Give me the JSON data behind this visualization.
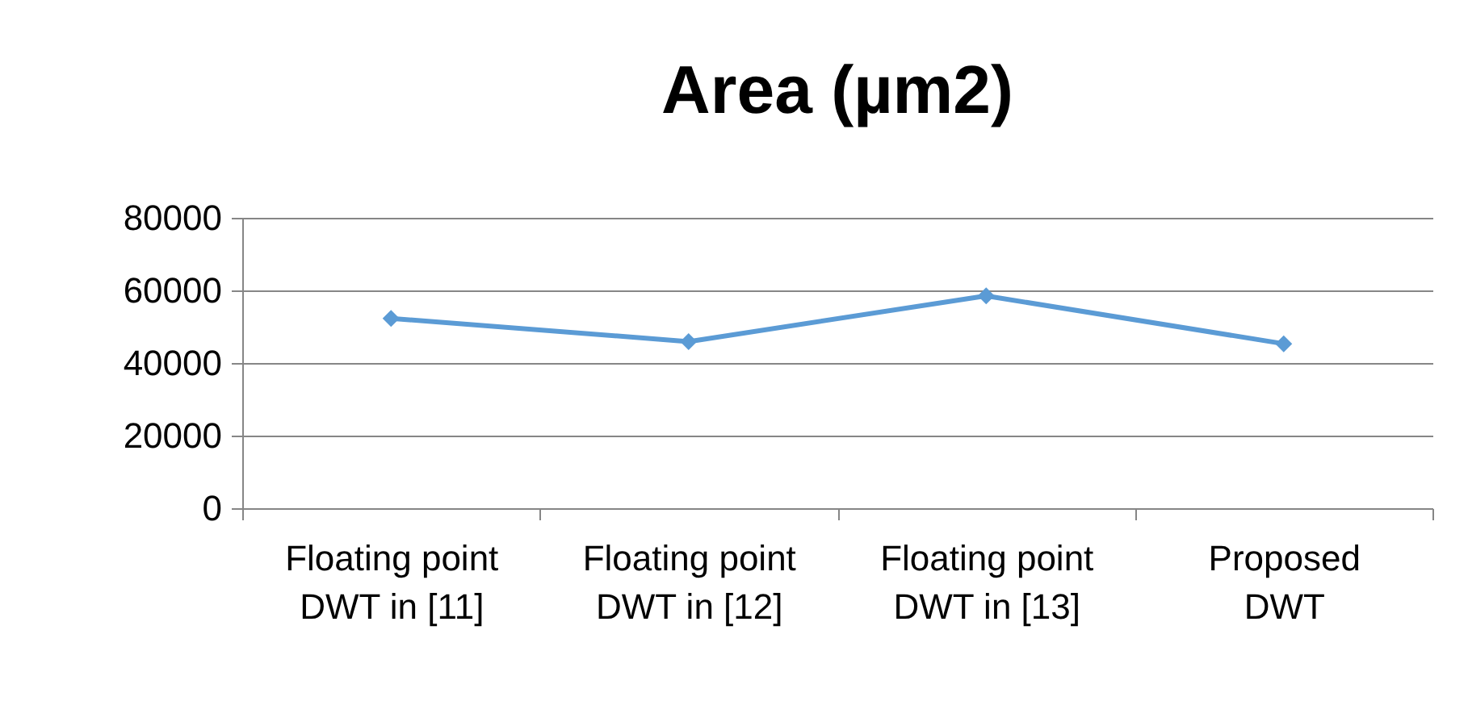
{
  "chart_data": {
    "type": "line",
    "title": "Area (µm2)",
    "categories": [
      "Floating point\nDWT in [11]",
      "Floating point\nDWT in [12]",
      "Floating point\nDWT in [13]",
      "Proposed\nDWT"
    ],
    "series": [
      {
        "color": "#5b9bd5",
        "values": [
          52300,
          45900,
          58500,
          45300
        ]
      }
    ],
    "ylim": [
      0,
      80000
    ],
    "yticks": [
      0,
      20000,
      40000,
      60000,
      80000
    ],
    "grid": "y",
    "marker": "diamond"
  }
}
